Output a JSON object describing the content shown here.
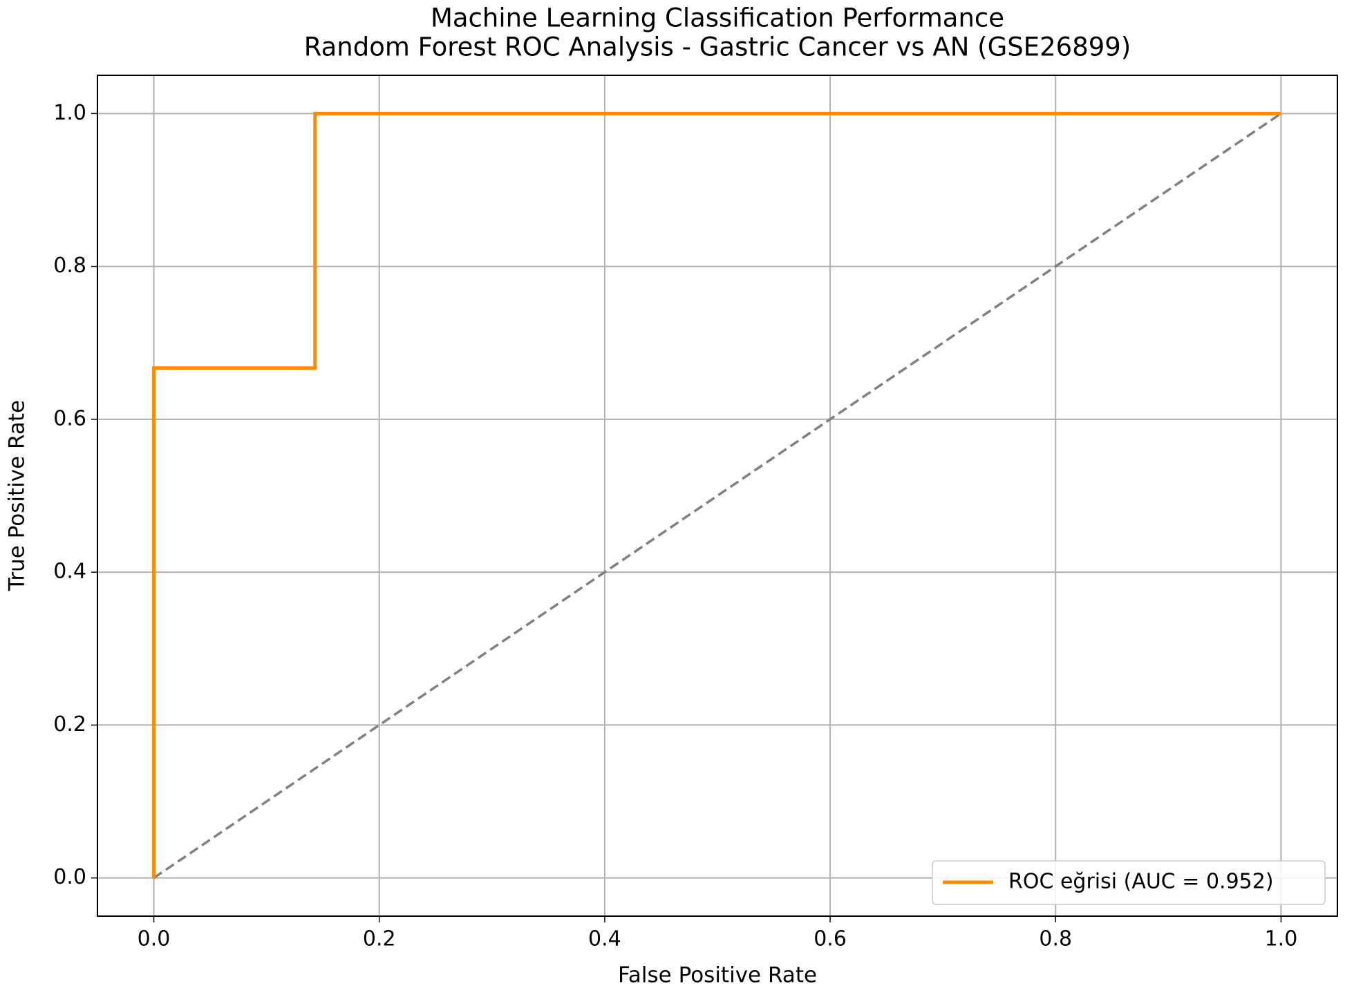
{
  "chart_data": {
    "type": "line",
    "title": "Machine Learning Classification Performance",
    "subtitle": "Random Forest ROC Analysis - Gastric Cancer vs AN (GSE26899)",
    "x_label": "False Positive Rate",
    "y_label": "True Positive Rate",
    "xlim": [
      -0.05,
      1.05
    ],
    "ylim": [
      -0.05,
      1.05
    ],
    "xticks": [
      {
        "value": 0,
        "label": "0.0"
      },
      0.2,
      0.4,
      0.6,
      0.8,
      {
        "value": 1,
        "label": "1.0"
      }
    ],
    "yticks": [
      {
        "value": 0,
        "label": "0.0"
      },
      0.2,
      0.4,
      0.6,
      0.8,
      {
        "value": 1,
        "label": "1.0"
      }
    ],
    "grid": true,
    "legend": "lower right",
    "series": [
      {
        "name": "ROC eğrisi (AUC = 0.952)",
        "color": "#ff8c00",
        "x": [
          0,
          0,
          0.143,
          0.143,
          1
        ],
        "values": [
          0,
          0.667,
          0.667,
          1,
          1
        ]
      },
      {
        "color": "#808080",
        "dash": true,
        "x": [
          0,
          1
        ],
        "values": [
          0,
          1
        ]
      }
    ]
  }
}
